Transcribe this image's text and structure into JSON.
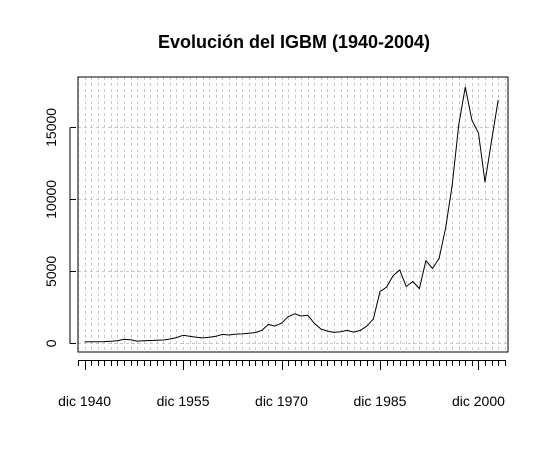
{
  "chart_data": {
    "type": "line",
    "title": "Evolución del IGBM (1940-2004)",
    "xlabel": "",
    "ylabel": "",
    "x_tick_labels": [
      "dic 1940",
      "dic 1955",
      "dic 1970",
      "dic 1985",
      "dic 2000"
    ],
    "x_tick_years": [
      1940,
      1955,
      1970,
      1985,
      2000
    ],
    "y_ticks": [
      0,
      5000,
      10000,
      15000
    ],
    "xlim": [
      1939,
      2004.5
    ],
    "ylim": [
      -600,
      18500
    ],
    "grid": true,
    "series": [
      {
        "color": "#000000",
        "x": [
          1940,
          1941,
          1942,
          1943,
          1944,
          1945,
          1946,
          1947,
          1948,
          1949,
          1950,
          1951,
          1952,
          1953,
          1954,
          1955,
          1956,
          1957,
          1958,
          1959,
          1960,
          1961,
          1962,
          1963,
          1964,
          1965,
          1966,
          1967,
          1968,
          1969,
          1970,
          1971,
          1972,
          1973,
          1974,
          1975,
          1976,
          1977,
          1978,
          1979,
          1980,
          1981,
          1982,
          1983,
          1984,
          1985,
          1986,
          1987,
          1988,
          1989,
          1990,
          1991,
          1992,
          1993,
          1994,
          1995,
          1996,
          1997,
          1998,
          1999,
          2000,
          2001,
          2002,
          2003
        ],
        "values": [
          100,
          110,
          115,
          120,
          140,
          180,
          280,
          250,
          160,
          180,
          200,
          220,
          230,
          300,
          400,
          560,
          490,
          430,
          380,
          420,
          490,
          620,
          580,
          640,
          660,
          700,
          750,
          900,
          1320,
          1200,
          1400,
          1850,
          2050,
          1900,
          1950,
          1400,
          1000,
          850,
          760,
          800,
          900,
          780,
          900,
          1200,
          1700,
          3600,
          3900,
          4700,
          5100,
          3950,
          4300,
          3800,
          5750,
          5200,
          5900,
          8000,
          11000,
          15200,
          17800,
          15500,
          14600,
          11200,
          14100,
          16900
        ]
      }
    ]
  }
}
